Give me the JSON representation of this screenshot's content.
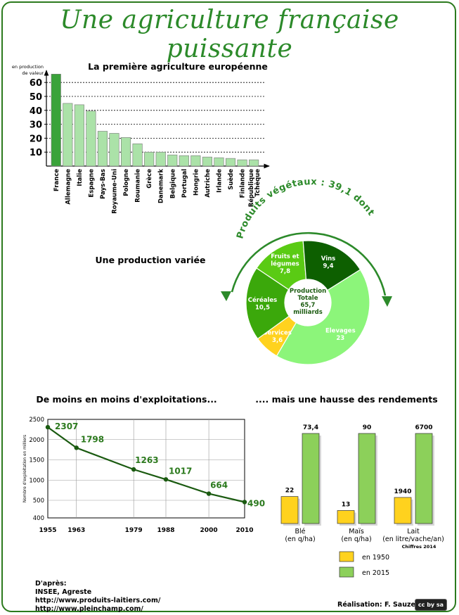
{
  "title": "Une agriculture française puissante",
  "chart_data": [
    {
      "type": "bar",
      "title": "La première agriculture européenne",
      "ylabel": "en production de valeur",
      "ylim": [
        0,
        70
      ],
      "yticks": [
        10,
        20,
        30,
        40,
        50,
        60
      ],
      "grid": true,
      "categories": [
        "France",
        "Allemagne",
        "Italie",
        "Espagne",
        "Pays-Bas",
        "Royaume-Uni",
        "Pologne",
        "Roumanie",
        "Grèce",
        "Danemark",
        "Belgique",
        "Portugal",
        "Hongrie",
        "Autriche",
        "Irlande",
        "Suède",
        "Finlande",
        "République Tchèque"
      ],
      "values": [
        66,
        45,
        44,
        39.5,
        25,
        23.5,
        20.5,
        16,
        10,
        10,
        8,
        7.5,
        7.5,
        6.5,
        6,
        5.5,
        4.5,
        4.5
      ],
      "colors": {
        "highlight": "#3aa33a",
        "others": "#abe2a8"
      }
    },
    {
      "type": "pie",
      "title": "Une production variée",
      "arc_label": "Produits végétaux : 39,1 dont",
      "center_label": [
        "Production",
        "Totale",
        "65,7",
        "milliards"
      ],
      "slices": [
        {
          "label": "Fruits et légumes",
          "value": 7.8,
          "color": "#5acb14"
        },
        {
          "label": "Vins",
          "value": 9.4,
          "color": "#0d5f00"
        },
        {
          "label": "Elevages",
          "value": 23,
          "color": "#8cf57a"
        },
        {
          "label": "Services",
          "value": 3.6,
          "color": "#ffd21e"
        },
        {
          "label": "Céréales",
          "value": 10.5,
          "color": "#3ba80b"
        }
      ],
      "value_labels": [
        "7,8",
        "9,4",
        "23",
        "3,6",
        "10,5"
      ]
    },
    {
      "type": "line",
      "title": "De moins en moins d'exploitations...",
      "ylabel": "Nombre d'exploitation en milliers",
      "x": [
        1955,
        1963,
        1979,
        1988,
        2000,
        2010
      ],
      "y": [
        2307,
        1798,
        1263,
        1017,
        664,
        490
      ],
      "xlim": [
        1955,
        2010
      ],
      "ylim": [
        400,
        2500
      ],
      "yticks": [
        400,
        500,
        1000,
        1500,
        2000,
        2500
      ],
      "grid": true
    },
    {
      "type": "bar",
      "title": ".... mais une hausse des rendements",
      "categories": [
        "Blé (en q/ha)",
        "Maïs (en q/ha)",
        "Lait (en litre/vache/an)"
      ],
      "category_lines": [
        [
          "Blé",
          "(en q/ha)"
        ],
        [
          "Maïs",
          "(en q/ha)"
        ],
        [
          "Lait",
          "(en litre/vache/an)"
        ]
      ],
      "series": [
        {
          "name": "en 1950",
          "values": [
            22,
            13,
            1940
          ],
          "labels": [
            "22",
            "13",
            "1940"
          ],
          "color": "#ffd21e"
        },
        {
          "name": "en 2015",
          "values": [
            73.4,
            90,
            6700
          ],
          "labels": [
            "73,4",
            "90",
            "6700"
          ],
          "color": "#8cd05a"
        }
      ],
      "scale_max": [
        73.4,
        90,
        6700
      ],
      "note": "Chiffres 2014"
    }
  ],
  "sources": [
    "D'après:",
    "INSEE, Agreste",
    "http://www.produits-laitiers.com/",
    "http://www.pleinchamp.com/"
  ],
  "credit": "Réalisation: F. Sauzeau",
  "license_badge": "cc by sa"
}
